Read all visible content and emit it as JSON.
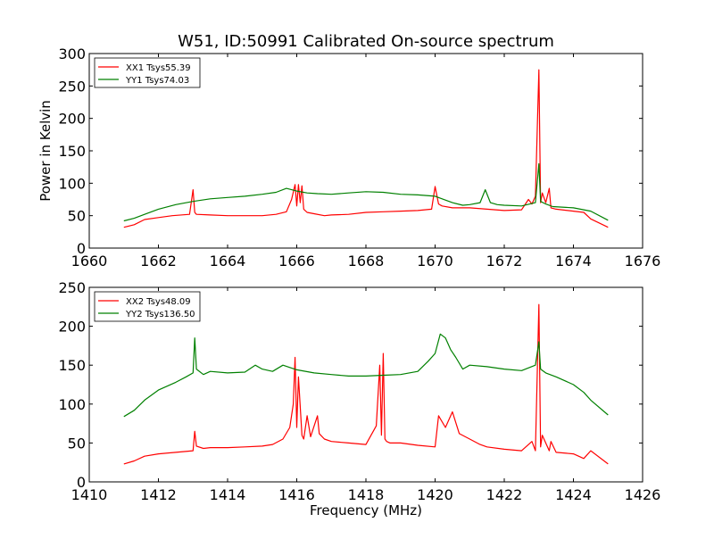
{
  "chart_data": [
    {
      "type": "line",
      "title": "W51, ID:50991 Calibrated On-source spectrum",
      "xlabel": "",
      "ylabel": "Power in Kelvin",
      "xlim": [
        1660,
        1676
      ],
      "ylim": [
        0,
        300
      ],
      "xticks": [
        "1660",
        "1662",
        "1664",
        "1666",
        "1668",
        "1670",
        "1672",
        "1674",
        "1676"
      ],
      "yticks": [
        "0",
        "50",
        "100",
        "150",
        "200",
        "250",
        "300"
      ],
      "grid": false,
      "legend_position": "top-left",
      "series": [
        {
          "name": "XX1 Tsys55.39",
          "color": "#ff0000",
          "x": [
            1661.0,
            1661.3,
            1661.6,
            1662.0,
            1662.4,
            1662.9,
            1663.0,
            1663.05,
            1663.1,
            1663.5,
            1664.0,
            1664.5,
            1665.0,
            1665.4,
            1665.7,
            1665.85,
            1665.95,
            1666.0,
            1666.05,
            1666.1,
            1666.15,
            1666.2,
            1666.3,
            1666.5,
            1666.8,
            1667.0,
            1667.5,
            1668.0,
            1668.5,
            1669.0,
            1669.5,
            1669.9,
            1670.0,
            1670.1,
            1670.2,
            1670.5,
            1671.0,
            1671.5,
            1672.0,
            1672.5,
            1672.7,
            1672.8,
            1672.9,
            1673.0,
            1673.05,
            1673.1,
            1673.2,
            1673.3,
            1673.35,
            1673.5,
            1674.0,
            1674.3,
            1674.5,
            1675.0
          ],
          "y": [
            32,
            36,
            44,
            47,
            50,
            52,
            90,
            55,
            52,
            51,
            50,
            50,
            50,
            52,
            56,
            75,
            98,
            65,
            98,
            70,
            96,
            60,
            55,
            53,
            50,
            51,
            52,
            55,
            56,
            57,
            58,
            60,
            95,
            68,
            65,
            62,
            62,
            60,
            58,
            59,
            75,
            68,
            80,
            275,
            70,
            85,
            70,
            92,
            62,
            60,
            57,
            55,
            45,
            32
          ]
        },
        {
          "name": "YY1 Tsys74.03",
          "color": "#008000",
          "x": [
            1661.0,
            1661.3,
            1661.6,
            1662.0,
            1662.5,
            1663.0,
            1663.5,
            1664.0,
            1664.5,
            1665.0,
            1665.4,
            1665.7,
            1666.0,
            1666.3,
            1666.6,
            1667.0,
            1667.5,
            1668.0,
            1668.5,
            1669.0,
            1669.5,
            1670.0,
            1670.5,
            1670.8,
            1671.0,
            1671.3,
            1671.45,
            1671.6,
            1671.8,
            1672.0,
            1672.5,
            1672.9,
            1673.0,
            1673.05,
            1673.2,
            1673.4,
            1674.0,
            1674.5,
            1675.0
          ],
          "y": [
            42,
            46,
            52,
            60,
            67,
            72,
            76,
            78,
            80,
            83,
            86,
            92,
            88,
            85,
            84,
            83,
            85,
            87,
            86,
            83,
            82,
            80,
            70,
            66,
            67,
            70,
            90,
            70,
            67,
            66,
            65,
            70,
            130,
            72,
            68,
            64,
            62,
            57,
            43
          ]
        }
      ]
    },
    {
      "type": "line",
      "title": "",
      "xlabel": "Frequency (MHz)",
      "ylabel": "",
      "xlim": [
        1410,
        1426
      ],
      "ylim": [
        0,
        250
      ],
      "xticks": [
        "1410",
        "1412",
        "1414",
        "1416",
        "1418",
        "1420",
        "1422",
        "1424",
        "1426"
      ],
      "yticks": [
        "0",
        "50",
        "100",
        "150",
        "200",
        "250"
      ],
      "grid": false,
      "legend_position": "top-left",
      "series": [
        {
          "name": "XX2 Tsys48.09",
          "color": "#ff0000",
          "x": [
            1411.0,
            1411.3,
            1411.6,
            1412.0,
            1412.5,
            1413.0,
            1413.05,
            1413.1,
            1413.3,
            1413.5,
            1414.0,
            1414.5,
            1415.0,
            1415.3,
            1415.6,
            1415.8,
            1415.9,
            1415.95,
            1416.0,
            1416.05,
            1416.15,
            1416.2,
            1416.3,
            1416.4,
            1416.6,
            1416.65,
            1416.8,
            1417.0,
            1417.5,
            1418.0,
            1418.3,
            1418.4,
            1418.45,
            1418.5,
            1418.55,
            1418.6,
            1418.7,
            1419.0,
            1419.5,
            1420.0,
            1420.1,
            1420.3,
            1420.5,
            1420.7,
            1421.0,
            1421.3,
            1421.5,
            1422.0,
            1422.5,
            1422.8,
            1422.9,
            1423.0,
            1423.05,
            1423.1,
            1423.3,
            1423.35,
            1423.5,
            1424.0,
            1424.3,
            1424.5,
            1425.0
          ],
          "y": [
            23,
            27,
            33,
            36,
            38,
            40,
            65,
            46,
            43,
            44,
            44,
            45,
            46,
            48,
            55,
            70,
            100,
            160,
            70,
            135,
            60,
            55,
            85,
            58,
            85,
            62,
            55,
            52,
            50,
            48,
            72,
            150,
            60,
            165,
            55,
            52,
            50,
            50,
            47,
            45,
            85,
            70,
            90,
            62,
            55,
            48,
            45,
            42,
            40,
            52,
            40,
            228,
            45,
            60,
            40,
            52,
            38,
            36,
            30,
            40,
            23
          ]
        },
        {
          "name": "YY2 Tsys136.50",
          "color": "#008000",
          "x": [
            1411.0,
            1411.3,
            1411.6,
            1412.0,
            1412.5,
            1412.8,
            1413.0,
            1413.05,
            1413.1,
            1413.3,
            1413.5,
            1414.0,
            1414.5,
            1414.8,
            1415.0,
            1415.3,
            1415.6,
            1416.0,
            1416.5,
            1417.0,
            1417.5,
            1418.0,
            1418.5,
            1419.0,
            1419.5,
            1419.8,
            1420.0,
            1420.15,
            1420.3,
            1420.45,
            1420.6,
            1420.8,
            1421.0,
            1421.5,
            1422.0,
            1422.5,
            1422.9,
            1423.0,
            1423.05,
            1423.2,
            1423.5,
            1424.0,
            1424.3,
            1424.5,
            1425.0
          ],
          "y": [
            84,
            92,
            105,
            118,
            128,
            135,
            140,
            185,
            145,
            138,
            142,
            140,
            141,
            150,
            145,
            142,
            150,
            144,
            140,
            138,
            136,
            136,
            137,
            138,
            142,
            155,
            165,
            190,
            185,
            170,
            160,
            145,
            150,
            148,
            145,
            143,
            150,
            180,
            145,
            140,
            135,
            125,
            115,
            105,
            86
          ]
        }
      ]
    }
  ]
}
